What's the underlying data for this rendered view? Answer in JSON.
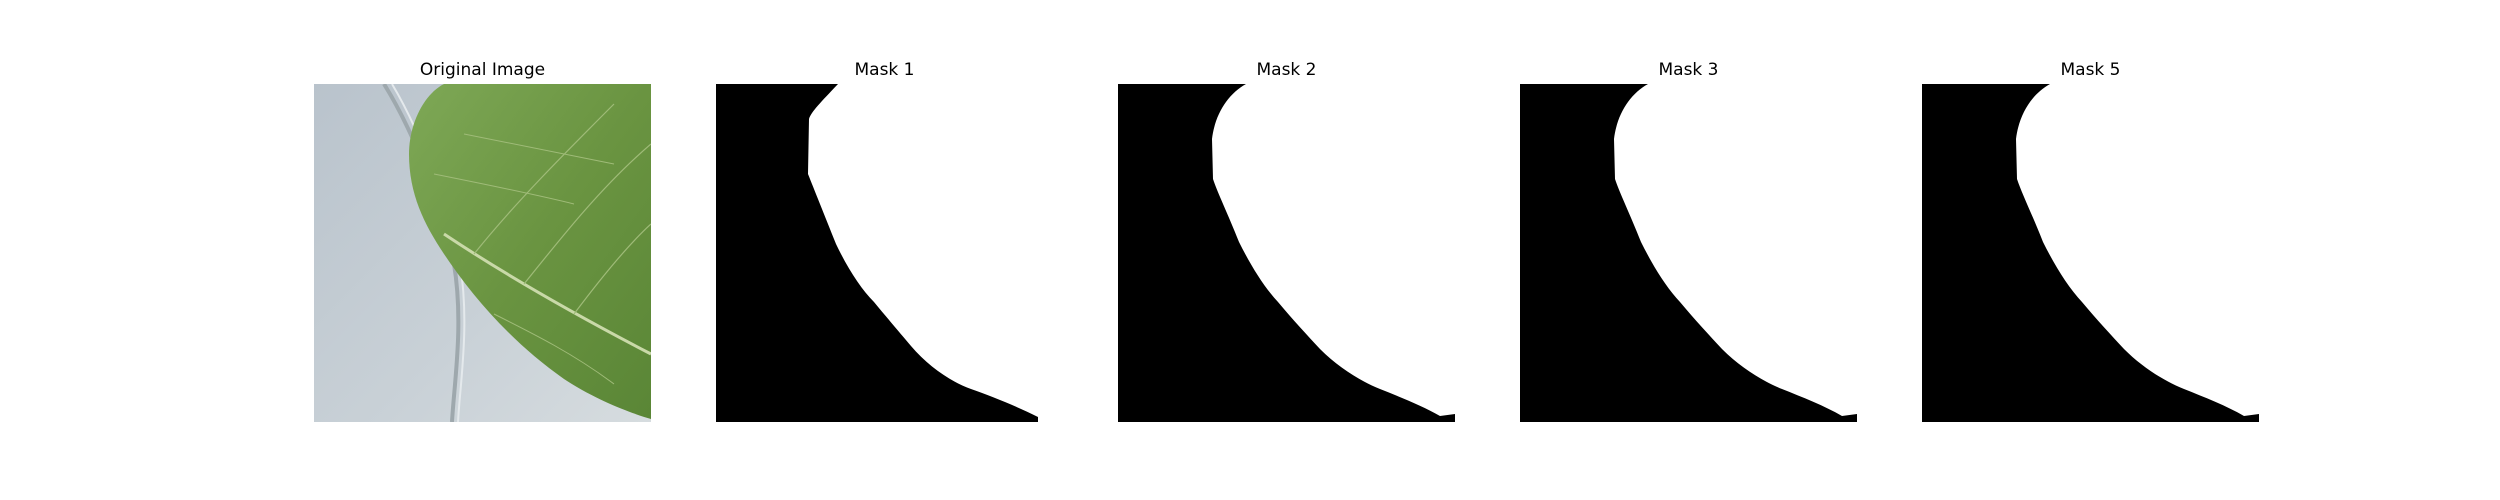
{
  "panels": [
    {
      "title": "Original Image",
      "kind": "photo"
    },
    {
      "title": "Mask 1",
      "kind": "mask"
    },
    {
      "title": "Mask 2",
      "kind": "mask"
    },
    {
      "title": "Mask 3",
      "kind": "mask"
    },
    {
      "title": "Mask 5",
      "kind": "mask"
    }
  ],
  "colors": {
    "mask_background": "#000000",
    "mask_foreground": "#ffffff",
    "leaf_green": "#6f9a45",
    "leaf_vein": "#c9d9a8",
    "photo_background": "#c3ccd3"
  }
}
